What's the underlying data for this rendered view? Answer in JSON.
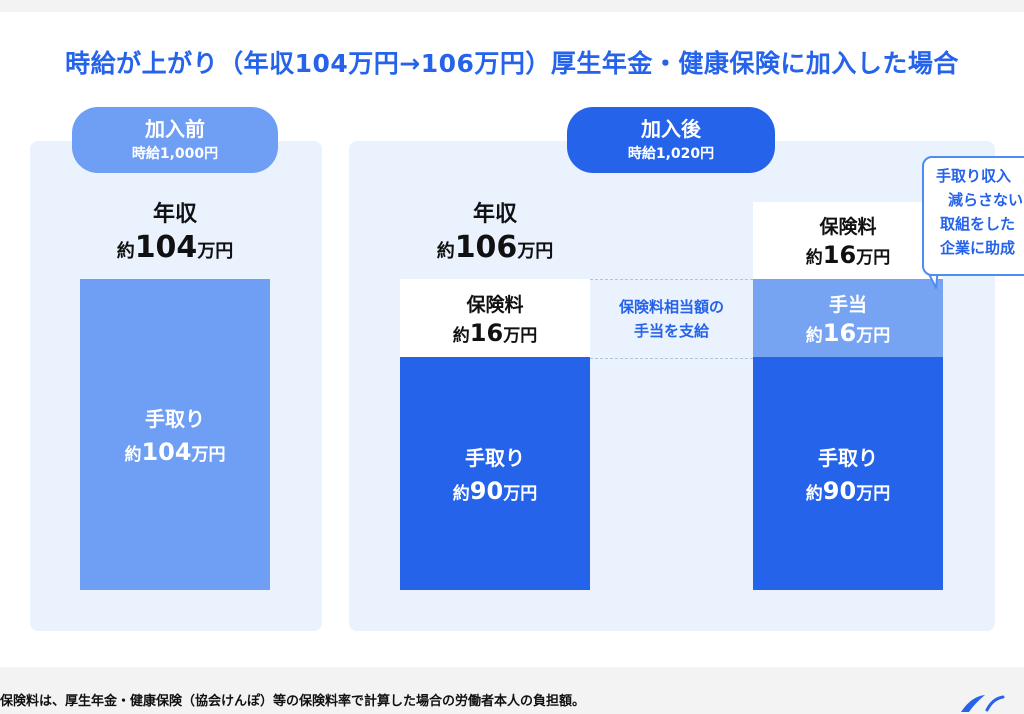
{
  "title": "時給が上がり（年収104万円→106万円）厚生年金・健康保険に加入した場合",
  "before": {
    "label": "加入前",
    "wage": "時給1,000円",
    "income_label": "年収",
    "income_prefix": "約",
    "income_value": "104",
    "income_unit": "万円",
    "takehome_label": "手取り",
    "takehome_prefix": "約",
    "takehome_value": "104",
    "takehome_unit": "万円"
  },
  "after": {
    "label": "加入後",
    "wage": "時給1,020円",
    "income_label": "年収",
    "income_prefix": "約",
    "income_value": "106",
    "income_unit": "万円",
    "premium_label": "保険料",
    "premium_prefix": "約",
    "premium_value": "16",
    "premium_unit": "万円",
    "takehome_label": "手取り",
    "takehome_prefix": "約",
    "takehome_value": "90",
    "takehome_unit": "万円",
    "allowance_note_line1": "保険料相当額の",
    "allowance_note_line2": "手当を支給"
  },
  "with_allowance": {
    "premium_label": "保険料",
    "premium_prefix": "約",
    "premium_value": "16",
    "premium_unit": "万円",
    "allowance_label": "手当",
    "allowance_prefix": "約",
    "allowance_value": "16",
    "allowance_unit": "万円",
    "takehome_label": "手取り",
    "takehome_prefix": "約",
    "takehome_value": "90",
    "takehome_unit": "万円"
  },
  "callout": {
    "line1": "手取り収入",
    "line2": "減らさない",
    "line3": "取組をした",
    "line4": "企業に助成"
  },
  "footnote": "保険料は、厚生年金・健康保険（協会けんぽ）等の保険料率で計算した場合の労働者本人の負担額。",
  "colors": {
    "accent": "#2563eb",
    "light_bar": "#6f9ef5",
    "allowance_bar": "#76a4f3",
    "panel": "#eaf2fd"
  }
}
